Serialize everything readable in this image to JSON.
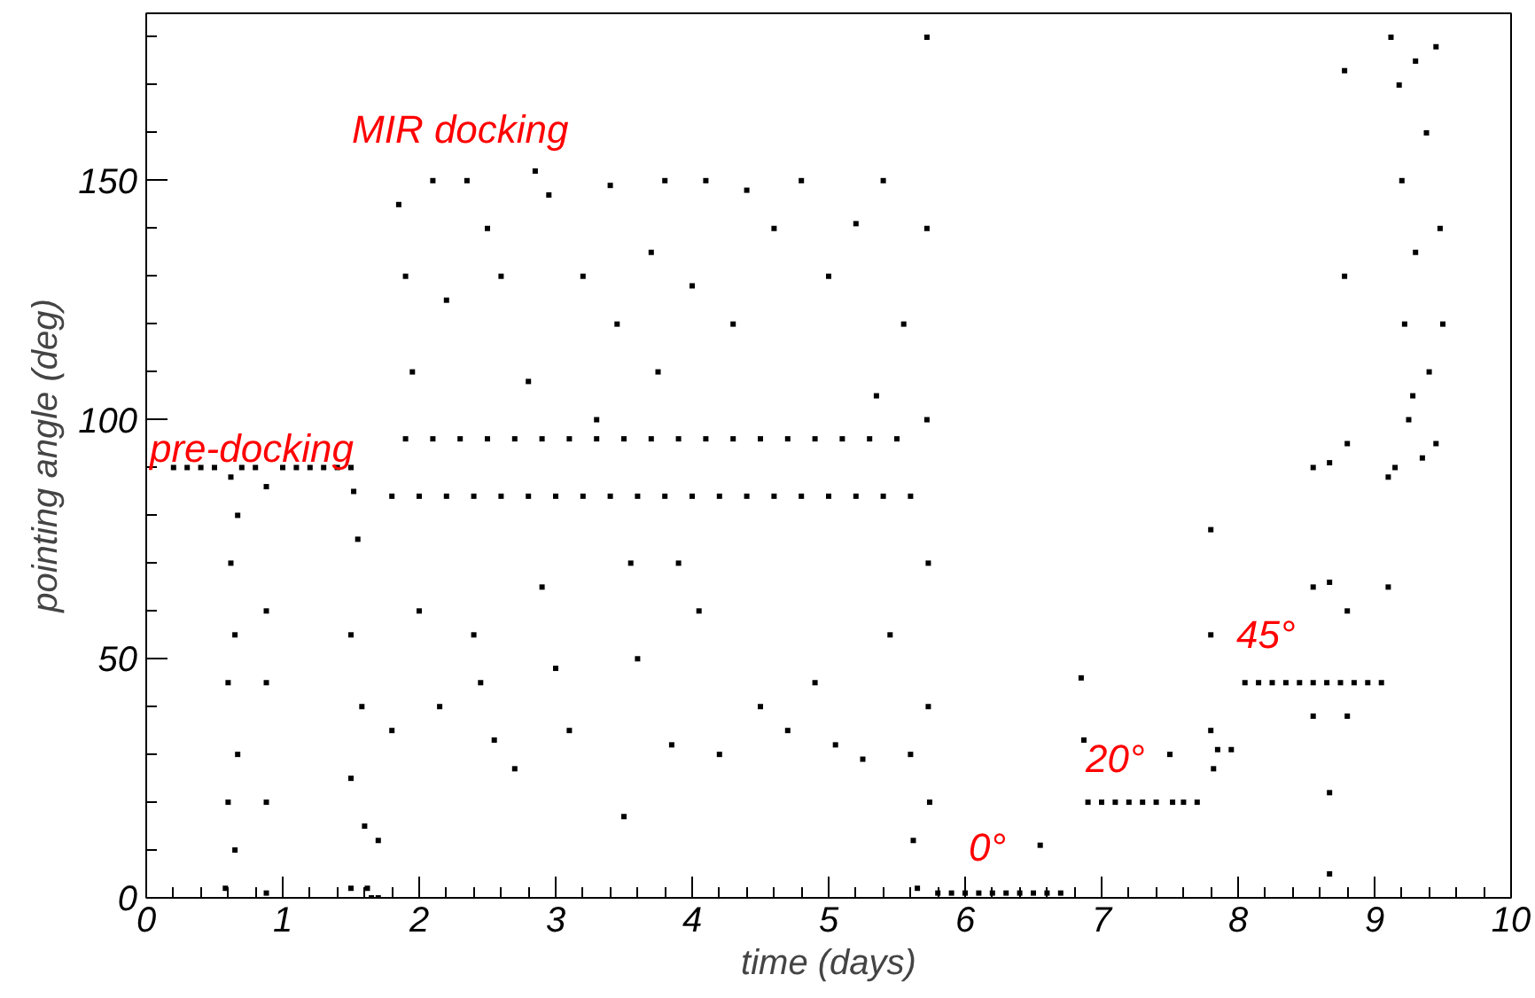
{
  "chart_data": {
    "type": "scatter",
    "xlabel": "time (days)",
    "ylabel": "pointing angle (deg)",
    "xlim": [
      0,
      10
    ],
    "xticks": [
      0,
      1,
      2,
      3,
      4,
      5,
      6,
      7,
      8,
      9,
      10
    ],
    "ylim": [
      0,
      185
    ],
    "yticks": [
      0,
      50,
      100,
      150
    ],
    "grid": false,
    "marker": "square",
    "annotations": [
      "pre-docking",
      "MIR docking",
      "0°",
      "20°",
      "45°"
    ],
    "series": [
      {
        "color": "#000000",
        "x": [
          0.2,
          0.3,
          0.4,
          0.5,
          0.7,
          0.8,
          1.0,
          1.1,
          1.2,
          1.3,
          1.4,
          1.5,
          0.58,
          0.6,
          0.6,
          0.62,
          0.62,
          0.65,
          0.65,
          0.67,
          0.67,
          0.88,
          0.88,
          0.88,
          0.88,
          0.88,
          1.5,
          1.5,
          1.5,
          1.52,
          1.55,
          1.58,
          1.6,
          1.62,
          1.65,
          1.7,
          1.7,
          1.8,
          2.0,
          2.2,
          2.4,
          2.6,
          2.8,
          3.0,
          3.2,
          3.4,
          3.6,
          3.8,
          4.0,
          4.2,
          4.4,
          4.6,
          4.8,
          5.0,
          5.2,
          5.4,
          5.6,
          1.9,
          2.1,
          2.3,
          2.5,
          2.7,
          2.9,
          3.1,
          3.3,
          3.5,
          3.7,
          3.9,
          4.1,
          4.3,
          4.5,
          4.7,
          4.9,
          5.1,
          5.3,
          5.5,
          1.85,
          1.9,
          1.95,
          2.0,
          1.8,
          2.1,
          2.15,
          2.2,
          2.35,
          2.4,
          2.45,
          2.5,
          2.55,
          2.6,
          2.7,
          2.8,
          2.85,
          2.9,
          2.95,
          3.0,
          3.1,
          3.2,
          3.3,
          3.4,
          3.45,
          3.5,
          3.55,
          3.6,
          3.7,
          3.75,
          3.8,
          3.85,
          3.9,
          4.0,
          4.05,
          4.1,
          4.2,
          4.3,
          4.4,
          4.5,
          4.6,
          4.7,
          4.8,
          4.9,
          5.0,
          5.05,
          5.2,
          5.25,
          5.35,
          5.4,
          5.45,
          5.55,
          5.6,
          5.62,
          5.65,
          5.72,
          5.72,
          5.72,
          5.73,
          5.73,
          5.74,
          5.8,
          5.9,
          6.0,
          6.1,
          6.2,
          6.3,
          6.4,
          6.5,
          6.55,
          6.6,
          6.7,
          6.85,
          6.87,
          6.9,
          7.0,
          7.1,
          7.2,
          7.3,
          7.4,
          7.5,
          7.52,
          7.6,
          7.7,
          7.8,
          7.8,
          7.8,
          7.82,
          7.85,
          7.95,
          8.05,
          8.15,
          8.25,
          8.35,
          8.45,
          8.55,
          8.65,
          8.75,
          8.85,
          8.95,
          9.05,
          8.55,
          8.55,
          8.55,
          8.67,
          8.67,
          8.67,
          8.67,
          8.78,
          8.78,
          8.8,
          8.8,
          8.8,
          9.1,
          9.1,
          9.12,
          9.15,
          9.2,
          9.22,
          9.25,
          9.3,
          9.3,
          9.35,
          9.38,
          9.4,
          9.45,
          9.45,
          9.48,
          9.5,
          9.18,
          9.28
        ],
        "values": [
          90,
          90,
          90,
          90,
          90,
          90,
          90,
          90,
          90,
          90,
          90,
          90,
          2,
          20,
          45,
          70,
          88,
          10,
          55,
          30,
          80,
          1,
          20,
          45,
          60,
          86,
          2,
          25,
          55,
          85,
          75,
          40,
          15,
          2,
          0,
          0,
          12,
          84,
          84,
          84,
          84,
          84,
          84,
          84,
          84,
          84,
          84,
          84,
          84,
          84,
          84,
          84,
          84,
          84,
          84,
          84,
          84,
          96,
          96,
          96,
          96,
          96,
          96,
          96,
          96,
          96,
          96,
          96,
          96,
          96,
          96,
          96,
          96,
          96,
          96,
          96,
          145,
          130,
          110,
          60,
          35,
          150,
          40,
          125,
          150,
          55,
          45,
          140,
          33,
          130,
          27,
          108,
          152,
          65,
          147,
          48,
          35,
          130,
          100,
          149,
          120,
          17,
          70,
          50,
          135,
          110,
          150,
          32,
          70,
          128,
          60,
          150,
          30,
          120,
          148,
          40,
          140,
          35,
          150,
          45,
          130,
          32,
          141,
          29,
          105,
          150,
          55,
          120,
          30,
          12,
          2,
          180,
          140,
          100,
          70,
          40,
          20,
          1,
          1,
          1,
          1,
          1,
          1,
          1,
          1,
          11,
          1,
          1,
          46,
          33,
          20,
          20,
          20,
          20,
          20,
          20,
          30,
          20,
          20,
          20,
          77,
          55,
          35,
          27,
          31,
          31,
          45,
          45,
          45,
          45,
          45,
          45,
          45,
          45,
          45,
          45,
          45,
          90,
          65,
          38,
          91,
          66,
          22,
          5,
          173,
          130,
          95,
          60,
          38,
          88,
          65,
          180,
          90,
          150,
          120,
          100,
          175,
          135,
          92,
          160,
          110,
          178,
          95,
          140,
          120,
          170,
          105
        ]
      }
    ]
  }
}
